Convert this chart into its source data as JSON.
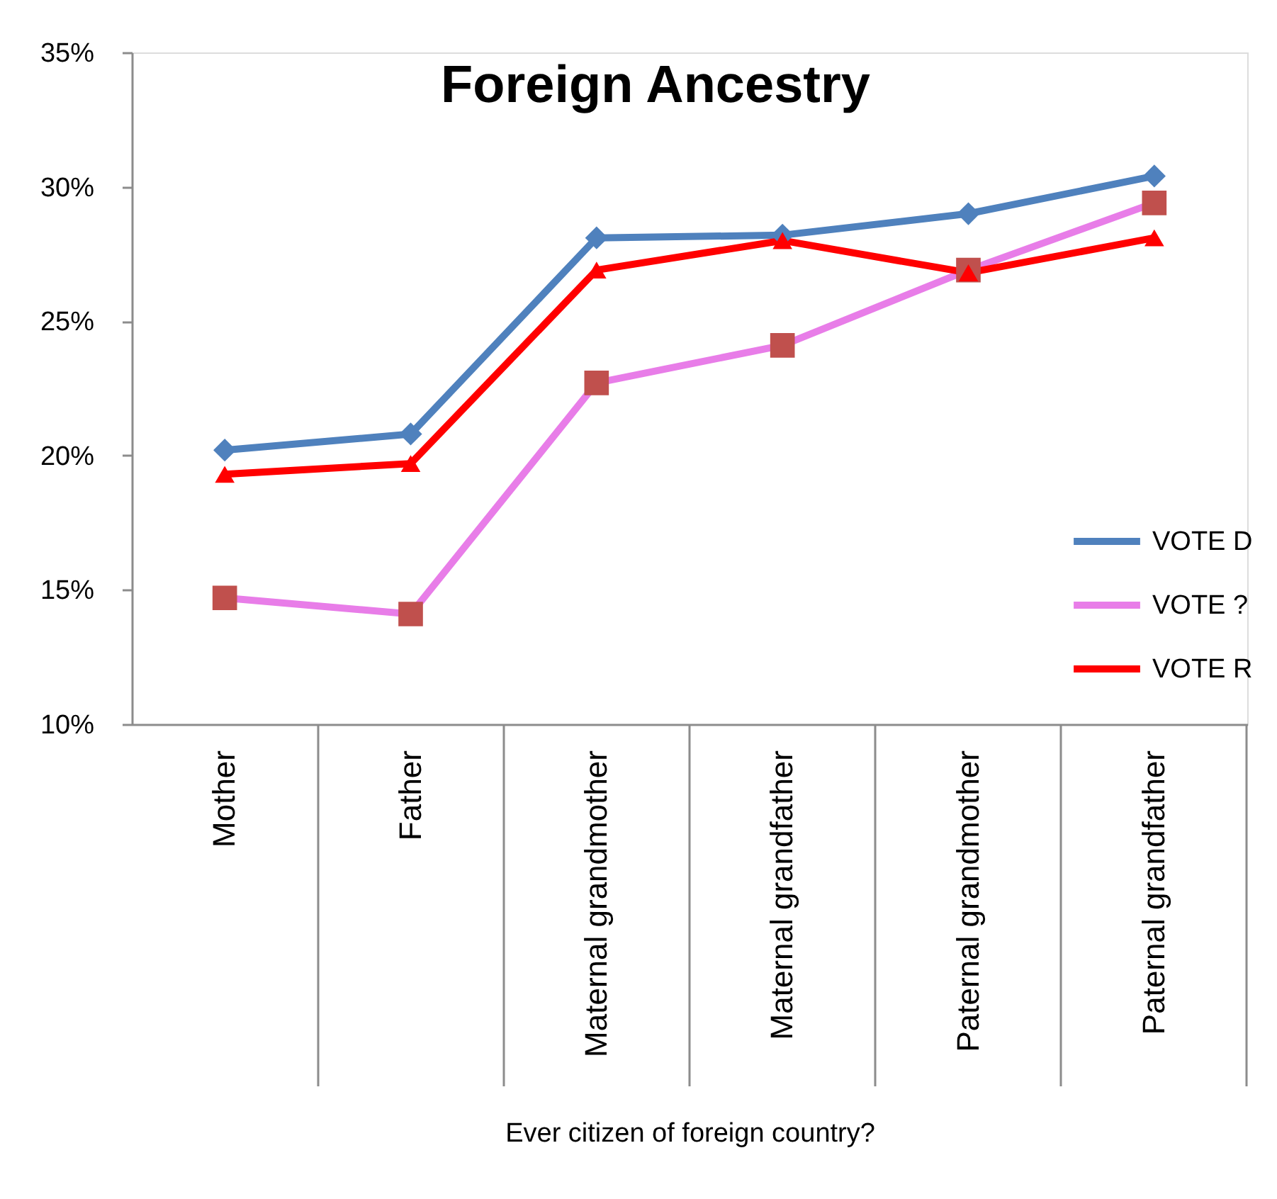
{
  "chart_data": {
    "type": "line",
    "title": "Foreign Ancestry",
    "xlabel": "Ever citizen of foreign country?",
    "categories": [
      "Mother",
      "Father",
      "Maternal grandmother",
      "Maternal grandfather",
      "Paternal grandmother",
      "Paternal grandfather"
    ],
    "series": [
      {
        "name": "VOTE D",
        "color": "#4f81bd",
        "marker": "diamond",
        "values": [
          20.2,
          20.8,
          28.1,
          28.2,
          29.0,
          30.4
        ]
      },
      {
        "name": "VOTE ?",
        "color": "#e87de8",
        "marker": "square",
        "colors": [
          "#c0504d",
          "#c0504d",
          "#c0504d",
          "#c0504d",
          "#c0504d",
          "#c0504d"
        ],
        "values": [
          14.7,
          14.1,
          22.7,
          24.1,
          26.9,
          29.4
        ]
      },
      {
        "name": "VOTE R",
        "color": "#ff0000",
        "marker": "triangle",
        "values": [
          19.3,
          19.7,
          26.9,
          28.0,
          26.8,
          28.1
        ]
      }
    ],
    "ylim": [
      10,
      35
    ],
    "yticks": [
      {
        "value": 10,
        "label": "10%"
      },
      {
        "value": 15,
        "label": "15%"
      },
      {
        "value": 20,
        "label": "20%"
      },
      {
        "value": 25,
        "label": "25%"
      },
      {
        "value": 30,
        "label": "30%"
      },
      {
        "value": 35,
        "label": "35%"
      }
    ],
    "grid": false,
    "legend": "right",
    "line_style": "solid"
  }
}
